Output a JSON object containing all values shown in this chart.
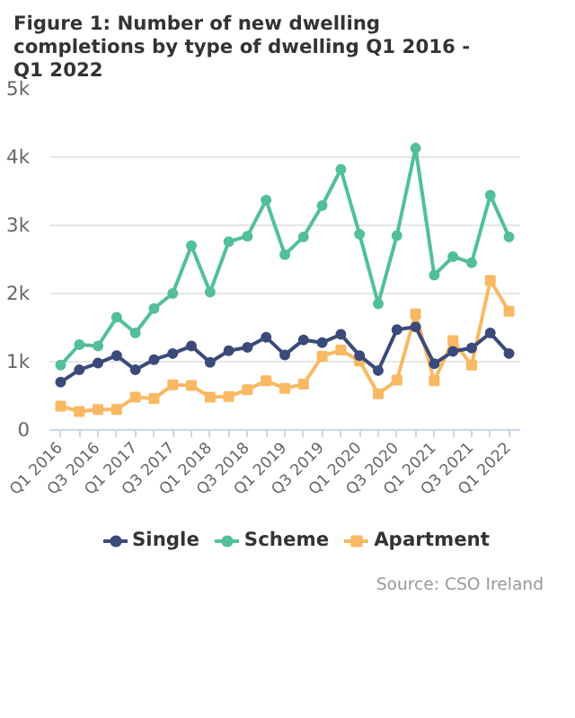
{
  "chart_data": {
    "type": "line",
    "title": "Figure 1: Number of new dwelling completions by type of dwelling Q1 2016 - Q1 2022",
    "categories": [
      "Q1 2016",
      null,
      "Q3 2016",
      null,
      "Q1 2017",
      null,
      "Q3 2017",
      null,
      "Q1 2018",
      null,
      "Q3 2018",
      null,
      "Q1 2019",
      null,
      "Q3 2019",
      null,
      "Q1 2020",
      null,
      "Q3 2020",
      null,
      "Q1 2021",
      null,
      "Q3 2021",
      null,
      "Q1 2022"
    ],
    "series": [
      {
        "name": "Single",
        "color": "#3b4a7a",
        "marker": "circle",
        "values": [
          700,
          880,
          980,
          1090,
          880,
          1030,
          1120,
          1230,
          990,
          1160,
          1210,
          1360,
          1100,
          1320,
          1280,
          1400,
          1090,
          870,
          1470,
          1510,
          970,
          1150,
          1200,
          1420,
          1120
        ]
      },
      {
        "name": "Scheme",
        "color": "#52bf9a",
        "marker": "circle",
        "values": [
          950,
          1250,
          1230,
          1650,
          1420,
          1780,
          2000,
          2700,
          2020,
          2760,
          2840,
          3370,
          2570,
          2830,
          3290,
          3820,
          2870,
          1850,
          2850,
          4130,
          2270,
          2540,
          2450,
          3440,
          2830
        ]
      },
      {
        "name": "Apartment",
        "color": "#f9b862",
        "marker": "square",
        "values": [
          350,
          270,
          300,
          300,
          480,
          460,
          660,
          650,
          480,
          490,
          590,
          720,
          610,
          670,
          1080,
          1170,
          1010,
          530,
          730,
          1700,
          720,
          1310,
          950,
          2190,
          1740
        ]
      }
    ],
    "ylim": [
      0,
      5000
    ],
    "yticks": [
      0,
      {
        "value": 1000,
        "label": "1k"
      },
      {
        "value": 2000,
        "label": "2k"
      },
      {
        "value": 3000,
        "label": "3k"
      },
      {
        "value": 4000,
        "label": "4k"
      },
      {
        "value": 5000,
        "label": "5k"
      }
    ],
    "grid": "y",
    "legend": "bottom",
    "line_style": "solid",
    "annotations": [
      "Source: CSO Ireland"
    ]
  }
}
